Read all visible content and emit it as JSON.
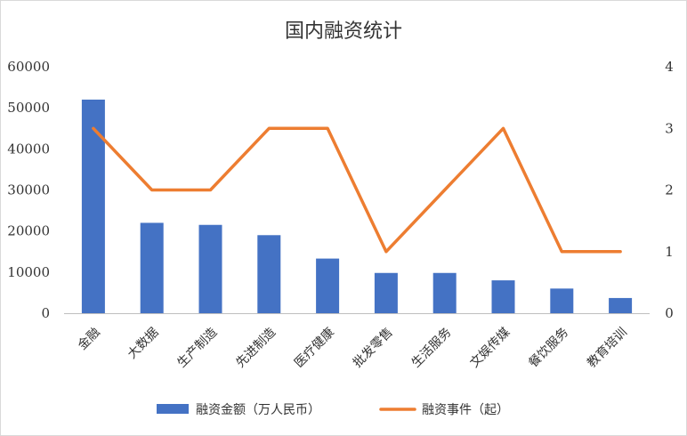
{
  "chart_data": {
    "type": "bar",
    "title": "国内融资统计",
    "categories": [
      "金融",
      "大数据",
      "生产制造",
      "先进制造",
      "医疗健康",
      "批发零售",
      "生活服务",
      "文娱传媒",
      "餐饮服务",
      "教育培训"
    ],
    "series": [
      {
        "name": "融资金额（万人民币）",
        "type": "bar",
        "axis": "left",
        "color": "#4472C4",
        "values": [
          52000,
          22000,
          21500,
          19000,
          13300,
          9800,
          9800,
          8000,
          6000,
          3700
        ]
      },
      {
        "name": "融资事件（起）",
        "type": "line",
        "axis": "right",
        "color": "#ED7D31",
        "values": [
          3,
          2,
          2,
          3,
          3,
          1,
          2,
          3,
          1,
          1
        ]
      }
    ],
    "y_left": {
      "min": 0,
      "max": 60000,
      "ticks": [
        "0",
        "10000",
        "20000",
        "30000",
        "40000",
        "50000",
        "60000"
      ]
    },
    "y_right": {
      "min": 0,
      "max": 4,
      "ticks": [
        "0",
        "1",
        "2",
        "3",
        "4"
      ]
    },
    "grid": false,
    "legend_position": "bottom"
  }
}
